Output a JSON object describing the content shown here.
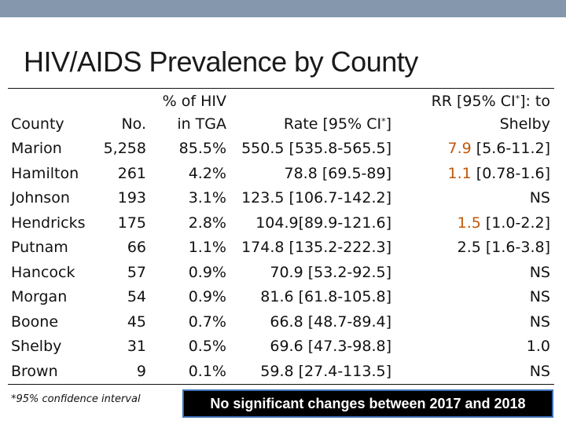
{
  "slide": {
    "title": "HIV/AIDS Prevalence by County",
    "footnote": "*95% confidence interval",
    "banner": "No significant changes between 2017 and 2018",
    "accent_color": "#c0590a",
    "topbar_color": "#8497ad",
    "banner_border_color": "#3c6fb4"
  },
  "table": {
    "headers": {
      "county": "County",
      "no": "No.",
      "pct_line1": "% of HIV",
      "pct_line2": "in TGA",
      "rate": "Rate [95% CI",
      "rate_star": "*",
      "rate_close": "]",
      "rr_line1": "RR [95% CI",
      "rr_star": "*",
      "rr_close": "]: to",
      "rr_line2": "Shelby"
    },
    "rows": [
      {
        "county": "Marion",
        "no": "5,258",
        "pct": "85.5%",
        "rate": "550.5 [535.8-565.5]",
        "rr_hl": "7.9",
        "rr_rest": " [5.6-11.2]"
      },
      {
        "county": "Hamilton",
        "no": "261",
        "pct": "4.2%",
        "rate": "78.8 [69.5-89]",
        "rr_hl": "1.1",
        "rr_rest": " [0.78-1.6]"
      },
      {
        "county": "Johnson",
        "no": "193",
        "pct": "3.1%",
        "rate": "123.5 [106.7-142.2]",
        "rr_hl": "",
        "rr_rest": "NS"
      },
      {
        "county": "Hendricks",
        "no": "175",
        "pct": "2.8%",
        "rate": "104.9[89.9-121.6]",
        "rr_hl": "1.5",
        "rr_rest": " [1.0-2.2]"
      },
      {
        "county": "Putnam",
        "no": "66",
        "pct": "1.1%",
        "rate": "174.8 [135.2-222.3]",
        "rr_hl": "",
        "rr_rest": "2.5 [1.6-3.8]"
      },
      {
        "county": "Hancock",
        "no": "57",
        "pct": "0.9%",
        "rate": "70.9 [53.2-92.5]",
        "rr_hl": "",
        "rr_rest": "NS"
      },
      {
        "county": "Morgan",
        "no": "54",
        "pct": "0.9%",
        "rate": "81.6 [61.8-105.8]",
        "rr_hl": "",
        "rr_rest": "NS"
      },
      {
        "county": "Boone",
        "no": "45",
        "pct": "0.7%",
        "rate": "66.8 [48.7-89.4]",
        "rr_hl": "",
        "rr_rest": "NS"
      },
      {
        "county": "Shelby",
        "no": "31",
        "pct": "0.5%",
        "rate": "69.6 [47.3-98.8]",
        "rr_hl": "",
        "rr_rest": "1.0"
      },
      {
        "county": "Brown",
        "no": "9",
        "pct": "0.1%",
        "rate": "59.8 [27.4-113.5]",
        "rr_hl": "",
        "rr_rest": "NS"
      }
    ]
  }
}
